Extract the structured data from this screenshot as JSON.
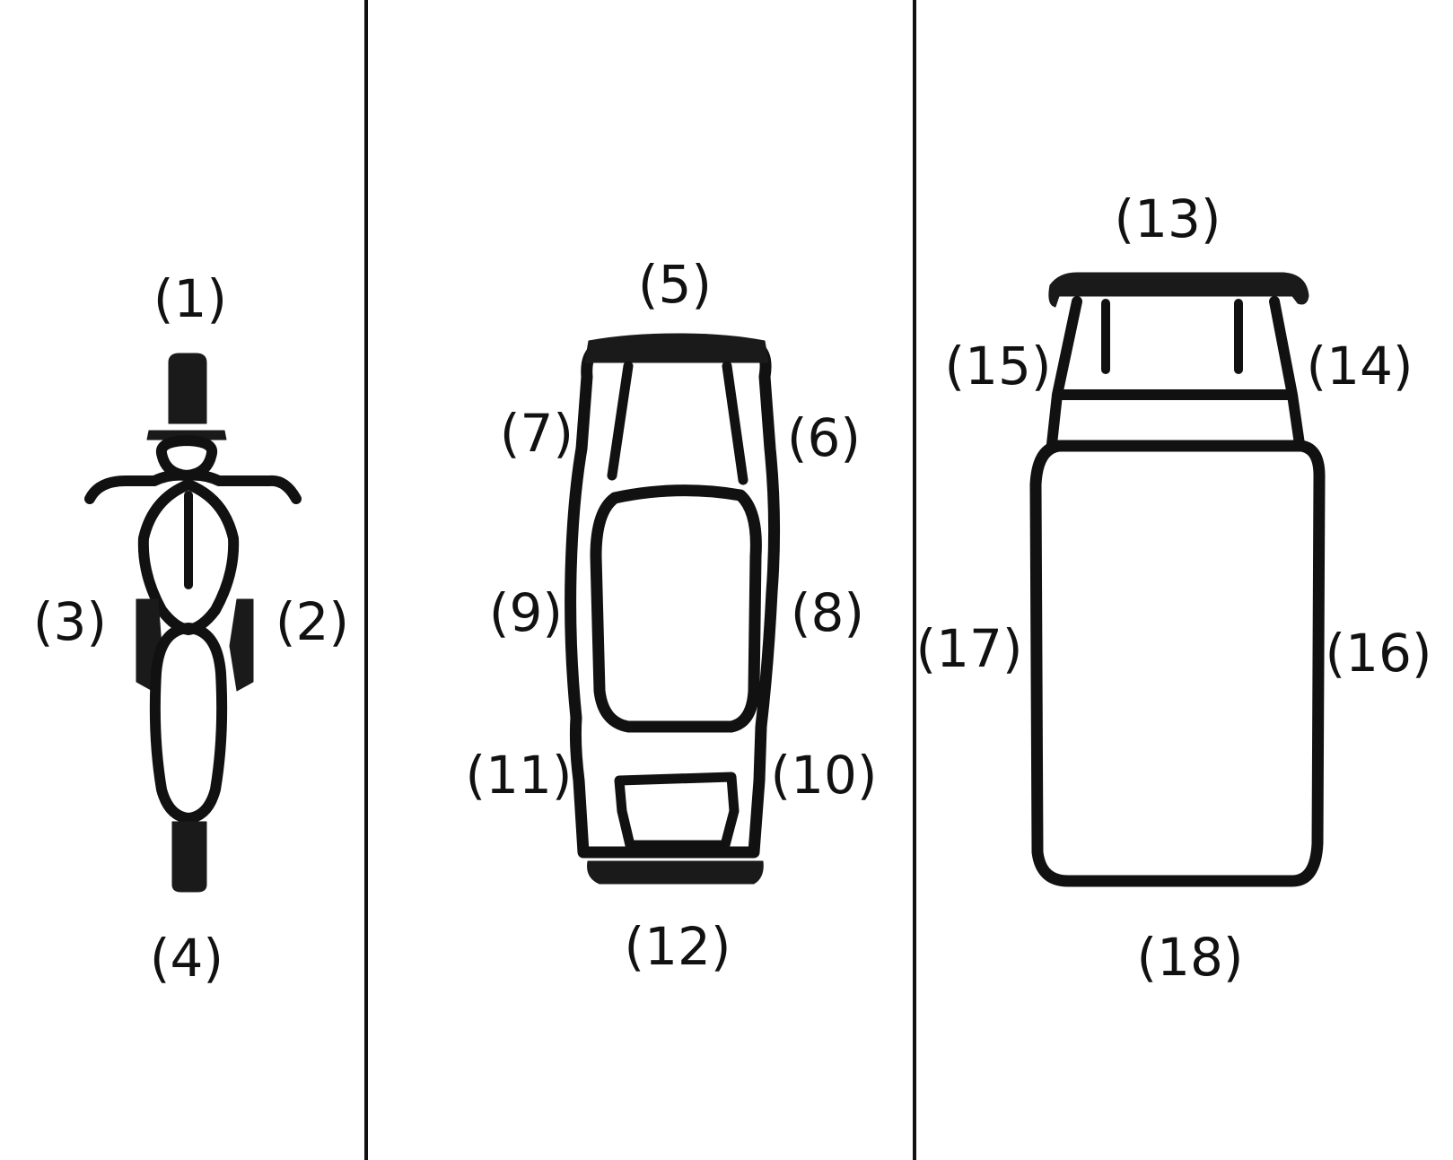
{
  "panels": [
    {
      "id": "motorcycle",
      "icon": "motorcycle-top-view-icon",
      "labels": {
        "front": "(1)",
        "right": "(2)",
        "left": "(3)",
        "rear": "(4)"
      }
    },
    {
      "id": "car",
      "icon": "car-top-view-icon",
      "labels": {
        "front": "(5)",
        "front_right": "(6)",
        "front_left": "(7)",
        "middle_right": "(8)",
        "middle_left": "(9)",
        "rear_right": "(10)",
        "rear_left": "(11)",
        "rear": "(12)"
      }
    },
    {
      "id": "truck",
      "icon": "truck-top-view-icon",
      "labels": {
        "front": "(13)",
        "cab_right": "(14)",
        "cab_left": "(15)",
        "body_right": "(16)",
        "body_left": "(17)",
        "rear": "(18)"
      }
    }
  ],
  "colors": {
    "ink": "#111111",
    "background": "#ffffff"
  }
}
